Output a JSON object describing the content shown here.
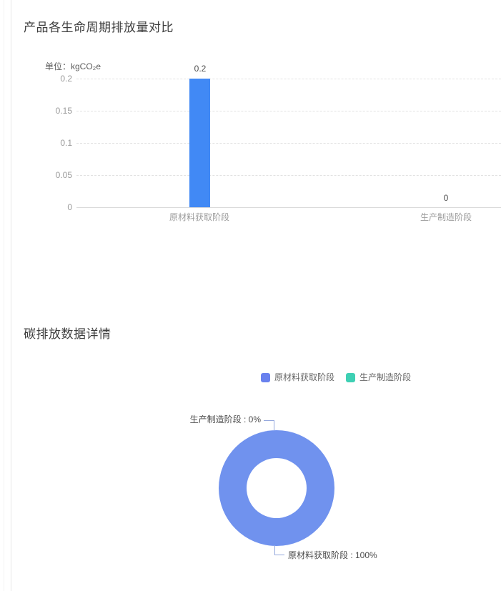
{
  "chart_data": [
    {
      "type": "bar",
      "title": "产品各生命周期排放量对比",
      "unit_label": "单位：kgCO₂e",
      "categories": [
        "原材料获取阶段",
        "生产制造阶段"
      ],
      "values": [
        0.2,
        0
      ],
      "value_labels": [
        "0.2",
        "0"
      ],
      "y_ticks": [
        "0.2",
        "0.15",
        "0.1",
        "0.05",
        "0"
      ],
      "ylim": [
        0,
        0.2
      ],
      "grid": "horizontal-dashed",
      "bar_color": "#4189f5",
      "legend_position": "none"
    },
    {
      "type": "pie",
      "title": "碳排放数据详情",
      "donut": true,
      "legend_position": "top-center",
      "legend": [
        {
          "label": "原材料获取阶段",
          "color": "#6981ee"
        },
        {
          "label": "生产制造阶段",
          "color": "#3ed0b4"
        }
      ],
      "slices": [
        {
          "name": "原材料获取阶段",
          "percent": 100,
          "color": "#7092ee",
          "callout": "原材料获取阶段 : 100%"
        },
        {
          "name": "生产制造阶段",
          "percent": 0,
          "color": "#3ed0b4",
          "callout": "生产制造阶段 : 0%"
        }
      ]
    }
  ],
  "colors": {
    "bar_blue": "#4189f5",
    "donut_blue": "#7092ee",
    "legend_blue": "#6981ee",
    "legend_teal": "#3ed0b4",
    "connector_line": "#94a8dd",
    "gridline": "#e2e2e2",
    "axis_line": "#d9d9d9"
  }
}
